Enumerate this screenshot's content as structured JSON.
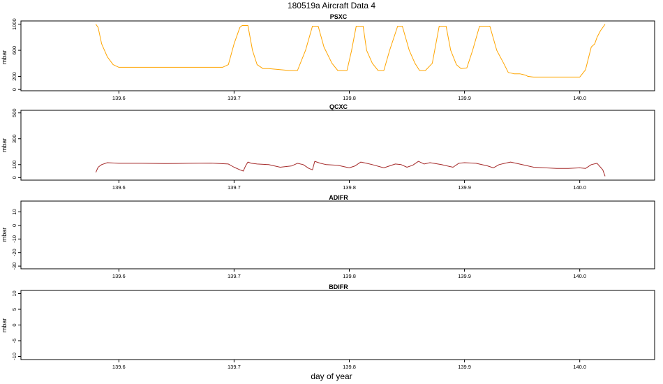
{
  "title": "180519a   Aircraft Data 4",
  "xlabel": "day of year",
  "colors": {
    "psxc": "#FFA500",
    "qcxc": "#A52A2A",
    "axis": "#000000"
  },
  "chart_data": [
    {
      "type": "line",
      "title": "PSXC",
      "ylabel": "mbar",
      "xlim": [
        139.515,
        140.065
      ],
      "ylim": [
        -20,
        1050
      ],
      "xticks": [
        139.6,
        139.7,
        139.8,
        139.9,
        140.0
      ],
      "xtick_labels": [
        "139.6",
        "139.7",
        "139.8",
        "139.9",
        "140.0"
      ],
      "yticks": [
        0,
        200,
        600,
        1000
      ],
      "ytick_labels": [
        "0",
        "200",
        "600",
        "1000"
      ],
      "grid": false,
      "series": [
        {
          "color": "#FFA500",
          "x": [
            139.58,
            139.582,
            139.585,
            139.59,
            139.595,
            139.6,
            139.69,
            139.695,
            139.7,
            139.705,
            139.707,
            139.712,
            139.716,
            139.72,
            139.725,
            139.73,
            139.748,
            139.755,
            139.762,
            139.768,
            139.773,
            139.778,
            139.785,
            139.79,
            139.798,
            139.802,
            139.806,
            139.812,
            139.815,
            139.82,
            139.825,
            139.83,
            139.835,
            139.842,
            139.846,
            139.852,
            139.857,
            139.861,
            139.866,
            139.872,
            139.878,
            139.884,
            139.888,
            139.893,
            139.897,
            139.902,
            139.907,
            139.913,
            139.922,
            139.928,
            139.934,
            139.938,
            139.943,
            139.948,
            139.953,
            139.955,
            139.96,
            139.975,
            139.99,
            140.0,
            140.005,
            140.01,
            140.013,
            140.015,
            140.018,
            140.022
          ],
          "y": [
            1000,
            950,
            700,
            500,
            380,
            340,
            340,
            380,
            700,
            950,
            980,
            980,
            600,
            380,
            320,
            320,
            290,
            290,
            600,
            970,
            970,
            650,
            400,
            290,
            290,
            600,
            970,
            970,
            600,
            400,
            290,
            290,
            600,
            970,
            970,
            600,
            400,
            290,
            290,
            400,
            970,
            970,
            600,
            380,
            320,
            330,
            600,
            970,
            970,
            600,
            400,
            260,
            240,
            240,
            220,
            200,
            190,
            190,
            190,
            190,
            300,
            650,
            700,
            800,
            900,
            1000
          ]
        }
      ]
    },
    {
      "type": "line",
      "title": "QCXC",
      "ylabel": "mbar",
      "xlim": [
        139.515,
        140.065
      ],
      "ylim": [
        -20,
        520
      ],
      "xticks": [
        139.6,
        139.7,
        139.8,
        139.9,
        140.0
      ],
      "xtick_labels": [
        "139.6",
        "139.7",
        "139.8",
        "139.9",
        "140.0"
      ],
      "yticks": [
        0,
        100,
        300,
        500
      ],
      "ytick_labels": [
        "0",
        "100",
        "300",
        "500"
      ],
      "grid": false,
      "series": [
        {
          "color": "#A52A2A",
          "x": [
            139.58,
            139.582,
            139.585,
            139.59,
            139.6,
            139.62,
            139.64,
            139.66,
            139.68,
            139.695,
            139.7,
            139.705,
            139.708,
            139.71,
            139.712,
            139.715,
            139.72,
            139.73,
            139.74,
            139.75,
            139.755,
            139.76,
            139.765,
            139.768,
            139.77,
            139.775,
            139.78,
            139.79,
            139.8,
            139.805,
            139.81,
            139.815,
            139.82,
            139.83,
            139.84,
            139.845,
            139.85,
            139.855,
            139.86,
            139.865,
            139.87,
            139.88,
            139.89,
            139.895,
            139.9,
            139.91,
            139.92,
            139.925,
            139.93,
            139.935,
            139.94,
            139.95,
            139.96,
            139.97,
            139.98,
            139.99,
            140.0,
            140.005,
            140.01,
            140.015,
            140.018,
            140.02,
            140.022
          ],
          "y": [
            40,
            80,
            100,
            115,
            110,
            110,
            108,
            110,
            112,
            105,
            80,
            60,
            50,
            90,
            120,
            110,
            105,
            100,
            80,
            90,
            110,
            100,
            70,
            60,
            125,
            110,
            100,
            95,
            75,
            90,
            120,
            110,
            100,
            75,
            105,
            100,
            80,
            95,
            125,
            105,
            115,
            100,
            80,
            110,
            115,
            110,
            90,
            75,
            100,
            110,
            120,
            100,
            80,
            75,
            70,
            70,
            75,
            70,
            100,
            110,
            80,
            60,
            10
          ]
        }
      ]
    },
    {
      "type": "line",
      "title": "ADIFR",
      "ylabel": "mbar",
      "xlim": [
        139.515,
        140.065
      ],
      "ylim": [
        -32,
        18
      ],
      "xticks": [
        139.6,
        139.7,
        139.8,
        139.9,
        140.0
      ],
      "xtick_labels": [
        "139.6",
        "139.7",
        "139.8",
        "139.9",
        "140.0"
      ],
      "yticks": [
        -30,
        -20,
        -10,
        0,
        10
      ],
      "ytick_labels": [
        "-30",
        "-20",
        "-10",
        "0",
        "10"
      ],
      "grid": false,
      "series": []
    },
    {
      "type": "line",
      "title": "BDIFR",
      "ylabel": "mbar",
      "xlim": [
        139.515,
        140.065
      ],
      "ylim": [
        -11,
        11
      ],
      "xticks": [
        139.6,
        139.7,
        139.8,
        139.9,
        140.0
      ],
      "xtick_labels": [
        "139.6",
        "139.7",
        "139.8",
        "139.9",
        "140.0"
      ],
      "yticks": [
        -10,
        -5,
        0,
        5,
        10
      ],
      "ytick_labels": [
        "-10",
        "-5",
        "0",
        "5",
        "10"
      ],
      "grid": false,
      "series": []
    }
  ]
}
